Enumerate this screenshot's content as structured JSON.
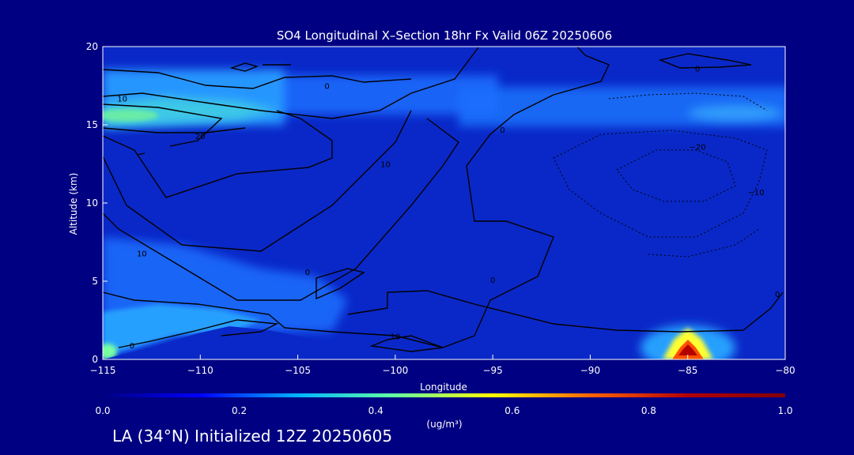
{
  "chart_data": {
    "type": "heatmap",
    "title": "SO4 Longitudinal X–Section 18hr  Fx Valid 06Z 20250606",
    "xlabel": "Longitude",
    "ylabel": "Altitude (km)",
    "xlim": [
      -115,
      -80
    ],
    "ylim": [
      0,
      20
    ],
    "x_ticks": [
      -115,
      -110,
      -105,
      -100,
      -95,
      -90,
      -85,
      -80
    ],
    "x_tick_labels": [
      "−115",
      "−110",
      "−105",
      "−100",
      "−95",
      "−90",
      "−85",
      "−80"
    ],
    "y_ticks": [
      0,
      5,
      10,
      15,
      20
    ],
    "y_tick_labels": [
      "0",
      "5",
      "10",
      "15",
      "20"
    ],
    "colorbar": {
      "min": 0.0,
      "max": 1.0,
      "ticks": [
        0.0,
        0.2,
        0.4,
        0.6,
        0.8,
        1.0
      ],
      "tick_labels": [
        "0.0",
        "0.2",
        "0.4",
        "0.6",
        "0.8",
        "1.0"
      ],
      "unit_label": "(ug/m³)",
      "colors": [
        "#000082",
        "#0000ff",
        "#00b4ff",
        "#64ffa0",
        "#ffff00",
        "#ff6400",
        "#b40000",
        "#820000"
      ]
    },
    "concentration_features": [
      {
        "lon_range": [
          -115,
          -102
        ],
        "alt_range": [
          14.2,
          16.8
        ],
        "peak": 0.5
      },
      {
        "lon_range": [
          -102,
          -80
        ],
        "alt_range": [
          15,
          17.6
        ],
        "peak": 0.3
      },
      {
        "lon_range": [
          -115,
          -108
        ],
        "alt_range": [
          0,
          4.5
        ],
        "peak": 0.3
      },
      {
        "lon_range": [
          -115,
          -114.4
        ],
        "alt_range": [
          0,
          0.9
        ],
        "peak": 0.7
      },
      {
        "lon_range": [
          -86.5,
          -83.5
        ],
        "alt_range": [
          0,
          1.7
        ],
        "peak": 1.0
      }
    ],
    "contour_labels": [
      {
        "text": "10",
        "lon": -114,
        "alt": 16.7
      },
      {
        "text": "20",
        "lon": -110,
        "alt": 14.3
      },
      {
        "text": "0",
        "lon": -103.5,
        "alt": 17.5
      },
      {
        "text": "0",
        "lon": -94.5,
        "alt": 14.7
      },
      {
        "text": "10",
        "lon": -100.5,
        "alt": 12.5
      },
      {
        "text": "0",
        "lon": -84.5,
        "alt": 18.6
      },
      {
        "text": "−20",
        "lon": -84.5,
        "alt": 13.6
      },
      {
        "text": "−10",
        "lon": -81.5,
        "alt": 10.7
      },
      {
        "text": "10",
        "lon": -113,
        "alt": 6.8
      },
      {
        "text": "0",
        "lon": -104.5,
        "alt": 5.6
      },
      {
        "text": "0",
        "lon": -95,
        "alt": 5.1
      },
      {
        "text": "10",
        "lon": -100,
        "alt": 1.5
      },
      {
        "text": "0",
        "lon": -113.5,
        "alt": 0.9
      },
      {
        "text": "0",
        "lon": -80.4,
        "alt": 4.2
      }
    ]
  },
  "footer": {
    "location_text": "LA (34°N) Initialized 12Z 20250605"
  }
}
